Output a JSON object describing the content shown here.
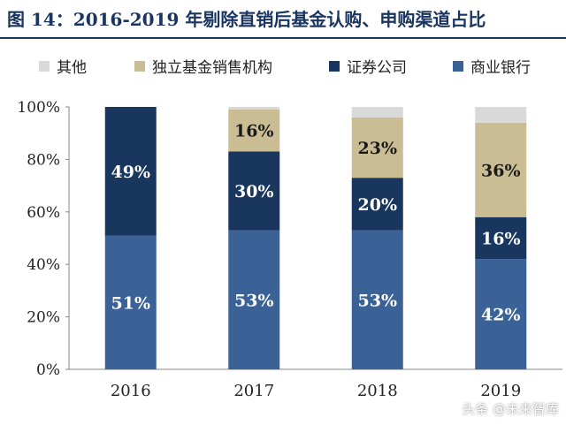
{
  "figure": {
    "title": "图 14：2016-2019 年剔除直销后基金认购、申购渠道占比",
    "watermark": "头条 @未来智库"
  },
  "colors": {
    "title": "#1a3560",
    "其他": "#d9d9d9",
    "独立基金销售机构": "#cbbd93",
    "证券公司": "#19365e",
    "商业银行": "#3a6296"
  },
  "chart_data": {
    "type": "bar",
    "stacked": true,
    "categories": [
      "2016",
      "2017",
      "2018",
      "2019"
    ],
    "series": [
      {
        "name": "商业银行",
        "values": [
          51,
          53,
          53,
          42
        ],
        "labels": [
          "51%",
          "53%",
          "53%",
          "42%"
        ]
      },
      {
        "name": "证券公司",
        "values": [
          49,
          30,
          20,
          16
        ],
        "labels": [
          "49%",
          "30%",
          "20%",
          "16%"
        ]
      },
      {
        "name": "独立基金销售机构",
        "values": [
          0,
          16,
          23,
          36
        ],
        "labels": [
          "",
          "16%",
          "23%",
          "36%"
        ]
      },
      {
        "name": "其他",
        "values": [
          0,
          1,
          4,
          6
        ],
        "labels": [
          "",
          "",
          "",
          ""
        ]
      }
    ],
    "legend_order": [
      "其他",
      "独立基金销售机构",
      "证券公司",
      "商业银行"
    ],
    "ylim": [
      0,
      100
    ],
    "yticks": [
      "0%",
      "20%",
      "40%",
      "60%",
      "80%",
      "100%"
    ],
    "legend_position": "top",
    "grid": false
  }
}
